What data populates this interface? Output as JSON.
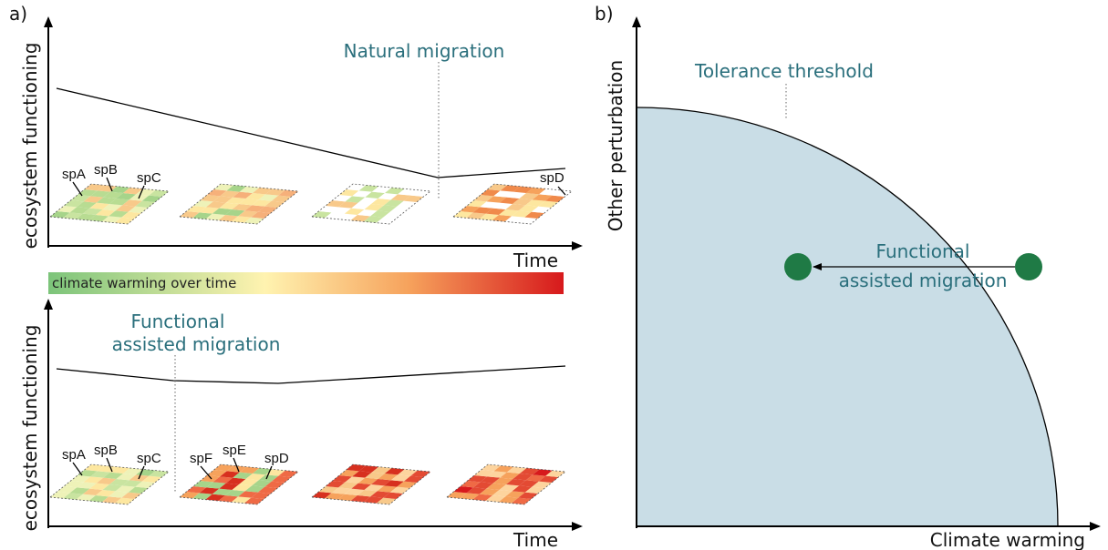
{
  "panel_a": {
    "label": "a)",
    "top": {
      "y_axis_label": "ecosystem functioning",
      "x_axis_label": "Time",
      "annotation": "Natural migration",
      "species": [
        "spA",
        "spB",
        "spC",
        "spD"
      ]
    },
    "gradient_bar": {
      "label": "climate warming over time"
    },
    "bottom": {
      "y_axis_label": "ecosystem functioning",
      "x_axis_label": "Time",
      "annotation_lines": [
        "Functional",
        "assisted migration"
      ],
      "species": [
        "spA",
        "spB",
        "spC",
        "spF",
        "spE",
        "spD"
      ]
    }
  },
  "panel_b": {
    "label": "b)",
    "y_axis_label": "Other perturbation",
    "x_axis_label": "Climate warming",
    "threshold_label": "Tolerance threshold",
    "arrow_label_lines": [
      "Functional",
      "assisted migration"
    ]
  }
}
